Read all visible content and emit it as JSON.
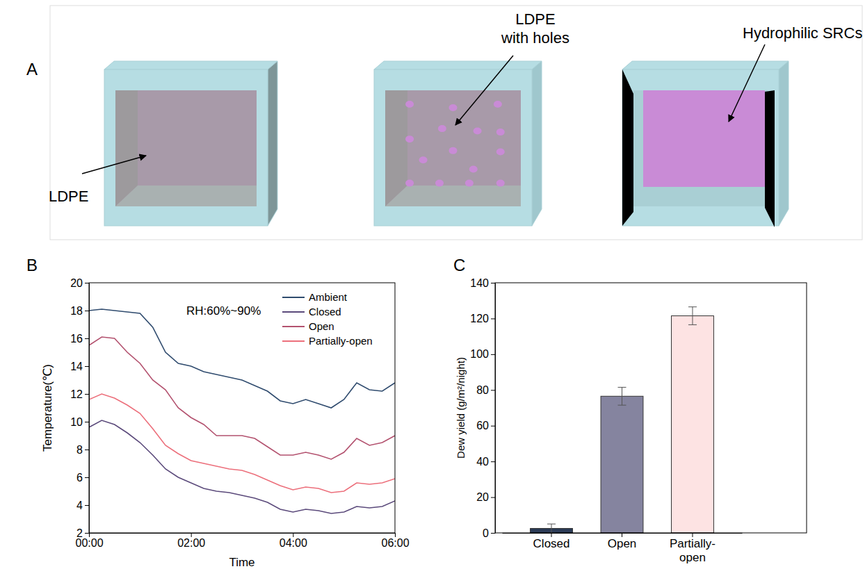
{
  "diagram": {
    "panel_label": "A",
    "items": [
      {
        "label": [
          "LDPE"
        ]
      },
      {
        "label": [
          "LDPE",
          "with holes"
        ]
      },
      {
        "label": [
          "Hydrophilic SRCs"
        ]
      }
    ]
  },
  "chart_data": [
    {
      "type": "line",
      "panel_label": "B",
      "x_label": "Time",
      "y_label": "Temperature(℃)",
      "annotation": "RH:60%~90%",
      "x": [
        0,
        0.25,
        0.5,
        0.75,
        1,
        1.25,
        1.5,
        1.75,
        2,
        2.25,
        2.5,
        2.75,
        3,
        3.25,
        3.5,
        3.75,
        4,
        4.25,
        4.5,
        4.75,
        5,
        5.25,
        5.5,
        5.75,
        6
      ],
      "xlim": [
        0,
        6
      ],
      "xticks": [
        {
          "value": 0,
          "label": "00:00"
        },
        {
          "value": 2,
          "label": "02:00"
        },
        {
          "value": 4,
          "label": "04:00"
        },
        {
          "value": 6,
          "label": "06:00"
        }
      ],
      "ylim": [
        2,
        20
      ],
      "yticks": [
        2,
        4,
        6,
        8,
        10,
        12,
        14,
        16,
        18,
        20
      ],
      "grid": false,
      "legend": "upper right",
      "series": [
        {
          "name": "Ambient",
          "color": "#2f4b6e",
          "values": [
            18.0,
            18.1,
            18.0,
            17.9,
            17.8,
            16.8,
            15.0,
            14.2,
            14.0,
            13.6,
            13.4,
            13.2,
            13.0,
            12.6,
            12.2,
            11.5,
            11.3,
            11.6,
            11.3,
            11.0,
            11.6,
            12.8,
            12.3,
            12.2,
            12.8
          ]
        },
        {
          "name": "Closed",
          "color": "#5b4a7b",
          "values": [
            9.6,
            10.1,
            9.8,
            9.2,
            8.5,
            7.6,
            6.6,
            6.0,
            5.6,
            5.2,
            5.0,
            4.9,
            4.7,
            4.5,
            4.2,
            3.7,
            3.5,
            3.7,
            3.6,
            3.4,
            3.5,
            3.9,
            3.8,
            3.9,
            4.3
          ]
        },
        {
          "name": "Open",
          "color": "#b3526f",
          "values": [
            15.5,
            16.1,
            16.0,
            15.0,
            14.2,
            13.0,
            12.3,
            11.0,
            10.3,
            9.8,
            9.0,
            9.0,
            9.0,
            8.8,
            8.2,
            7.6,
            7.6,
            7.8,
            7.6,
            7.3,
            7.8,
            8.8,
            8.3,
            8.5,
            9.0
          ]
        },
        {
          "name": "Partially-open",
          "color": "#ec6f7b",
          "values": [
            11.6,
            12.0,
            11.7,
            11.2,
            10.6,
            9.5,
            8.3,
            7.7,
            7.2,
            7.0,
            6.8,
            6.6,
            6.5,
            6.2,
            5.8,
            5.4,
            5.1,
            5.3,
            5.2,
            4.9,
            5.0,
            5.6,
            5.5,
            5.6,
            5.9
          ]
        }
      ]
    },
    {
      "type": "bar",
      "panel_label": "C",
      "y_label": "Dew yield (g/m²/night)",
      "categories": [
        "Closed",
        "Open",
        "Partially-open"
      ],
      "values": [
        2.5,
        76.5,
        121.5
      ],
      "errors": [
        2.5,
        5,
        5
      ],
      "colors": [
        "#2b3b56",
        "#85849f",
        "#fde3e3"
      ],
      "ylim": [
        0,
        140
      ],
      "yticks": [
        0,
        20,
        40,
        60,
        80,
        100,
        120,
        140
      ],
      "grid": false
    }
  ]
}
